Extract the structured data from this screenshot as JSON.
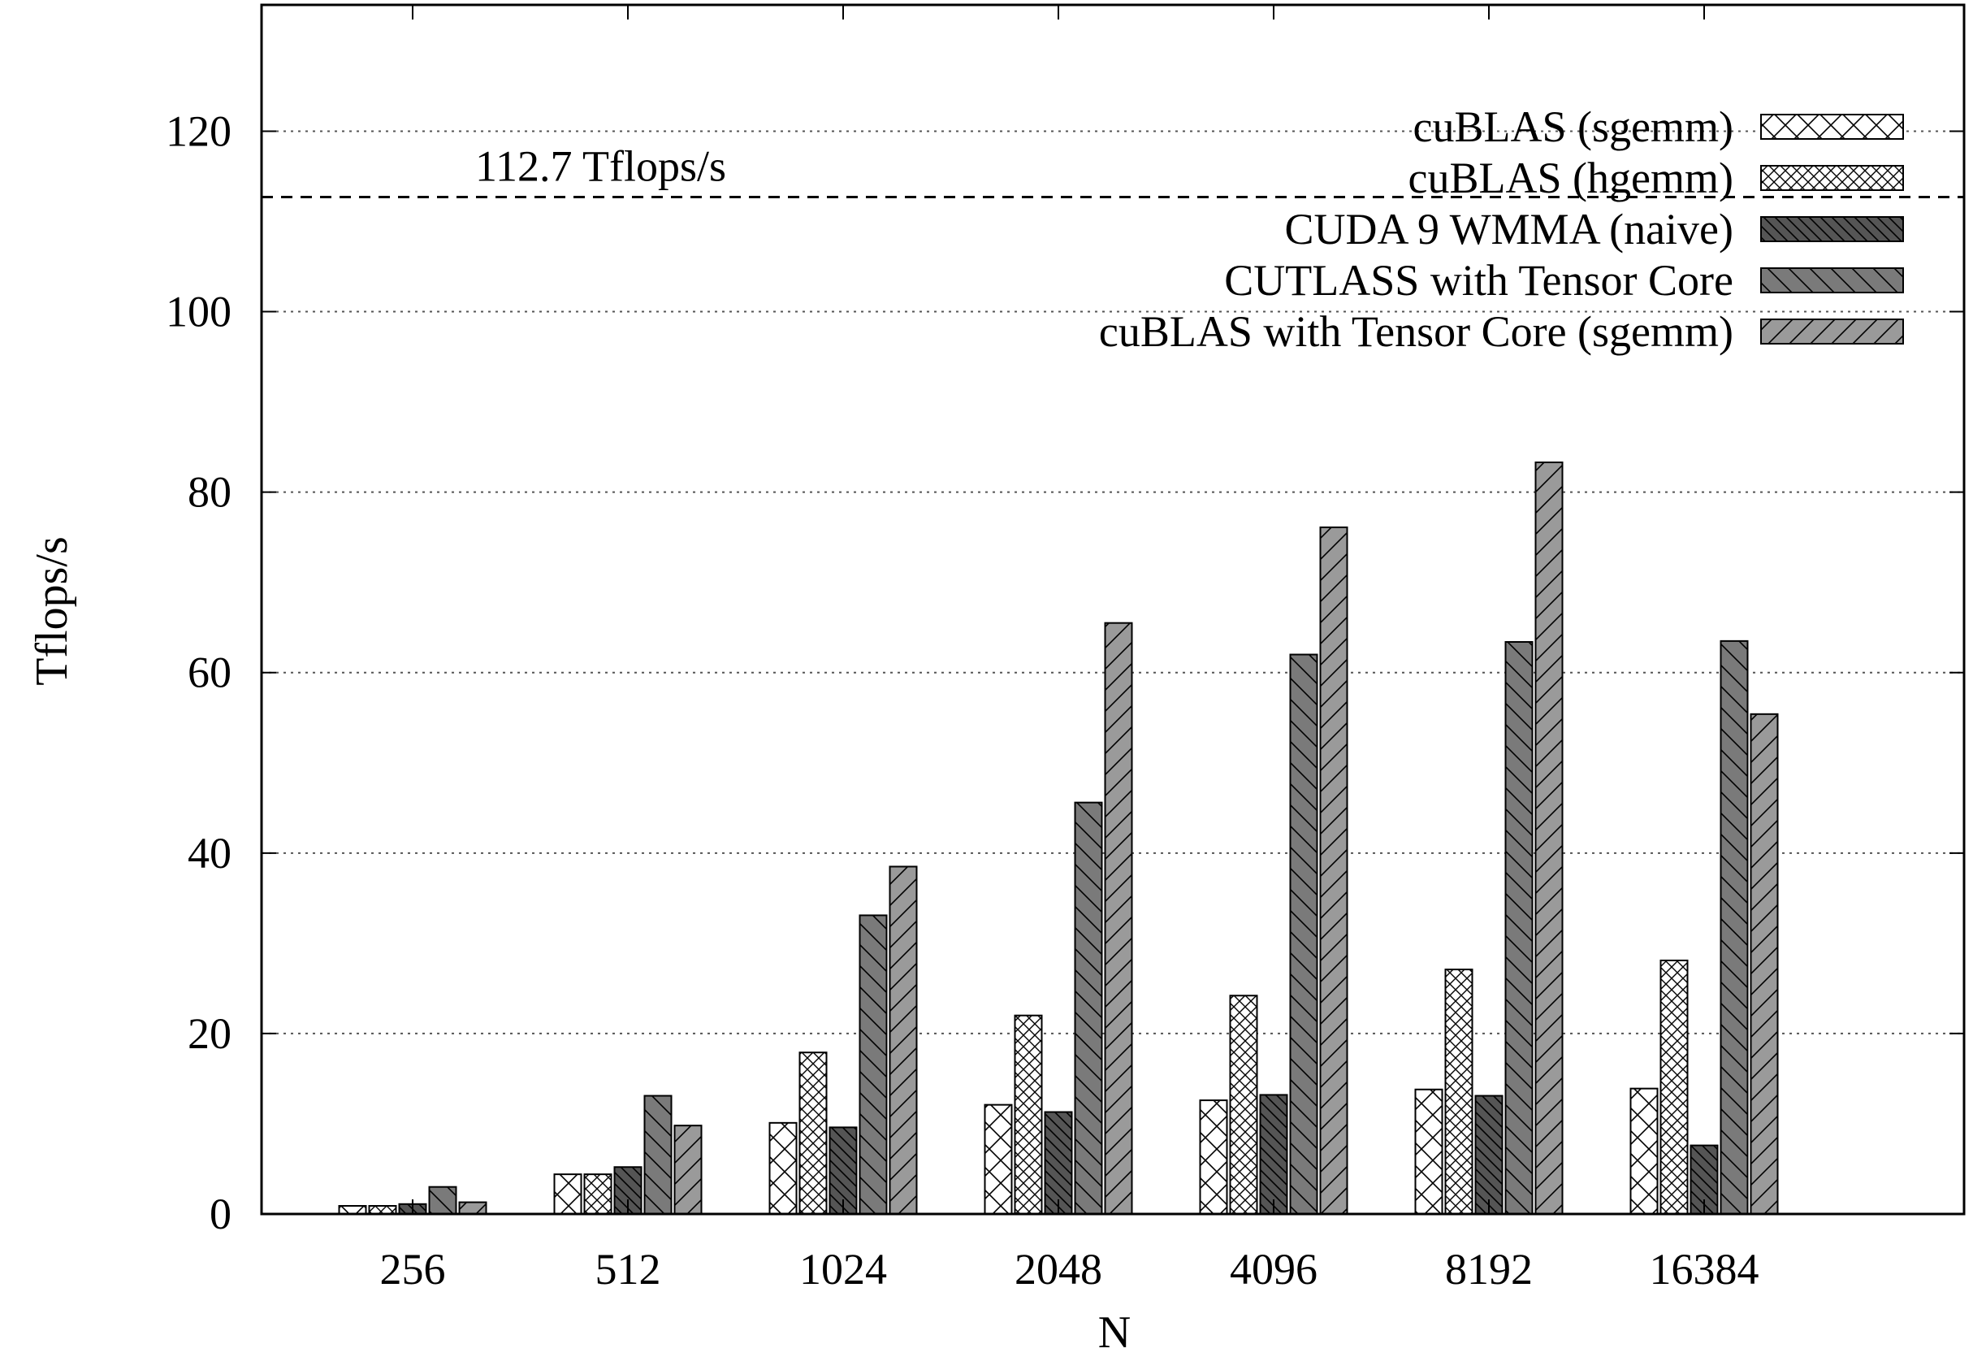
{
  "chart_data": {
    "type": "bar",
    "xlabel": "N",
    "ylabel": "Tflops/s",
    "ylim": [
      0,
      134
    ],
    "yticks": [
      0,
      20,
      40,
      60,
      80,
      100,
      120
    ],
    "grid": true,
    "legend_position": "top-right",
    "categories": [
      "256",
      "512",
      "1024",
      "2048",
      "4096",
      "8192",
      "16384"
    ],
    "series": [
      {
        "name": "cuBLAS (sgemm)",
        "color": "#ffffff",
        "pattern": "cross-sparse",
        "values": [
          0.9,
          4.4,
          10.1,
          12.1,
          12.6,
          13.8,
          13.9
        ]
      },
      {
        "name": "cuBLAS (hgemm)",
        "color": "#ffffff",
        "pattern": "cross-dense",
        "values": [
          0.9,
          4.4,
          17.9,
          22.0,
          24.2,
          27.1,
          28.1
        ]
      },
      {
        "name": "CUDA 9 WMMA (naive)",
        "color": "#555555",
        "pattern": "backslash-dense",
        "values": [
          1.1,
          5.2,
          9.6,
          11.3,
          13.2,
          13.1,
          7.6
        ]
      },
      {
        "name": "CUTLASS with Tensor Core",
        "color": "#7a7a7a",
        "pattern": "backslash",
        "values": [
          3.0,
          13.1,
          33.1,
          45.6,
          62.0,
          63.4,
          63.5
        ]
      },
      {
        "name": "cuBLAS with Tensor Core (sgemm)",
        "color": "#9a9a9a",
        "pattern": "slash",
        "values": [
          1.3,
          9.8,
          38.5,
          65.5,
          76.1,
          83.3,
          55.4
        ]
      }
    ],
    "reference_line": {
      "value": 112.7,
      "label": "112.7 Tflops/s",
      "style": "dashed"
    }
  }
}
